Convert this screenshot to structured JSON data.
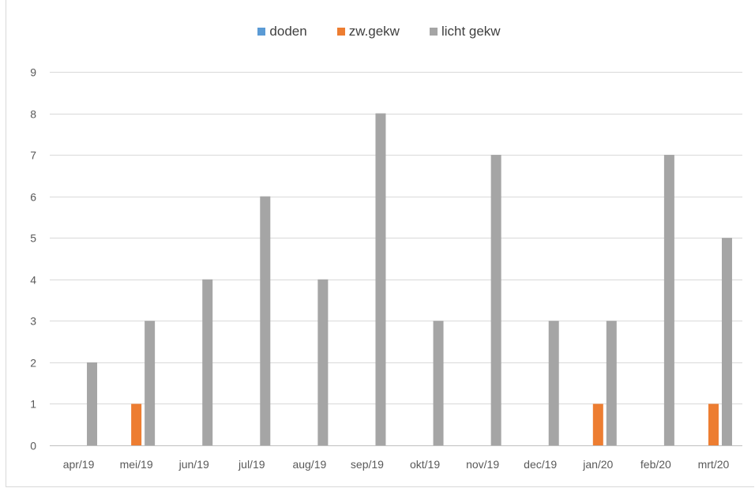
{
  "chart_data": {
    "type": "bar",
    "categories": [
      "apr/19",
      "mei/19",
      "jun/19",
      "jul/19",
      "aug/19",
      "sep/19",
      "okt/19",
      "nov/19",
      "dec/19",
      "jan/20",
      "feb/20",
      "mrt/20"
    ],
    "series": [
      {
        "name": "doden",
        "color": "#5b9bd5",
        "values": [
          0,
          0,
          0,
          0,
          0,
          0,
          0,
          0,
          0,
          0,
          0,
          0
        ]
      },
      {
        "name": "zw.gekw",
        "color": "#ed7d31",
        "values": [
          0,
          1,
          0,
          0,
          0,
          0,
          0,
          0,
          0,
          1,
          0,
          1
        ]
      },
      {
        "name": "licht gekw",
        "color": "#a5a5a5",
        "values": [
          2,
          3,
          4,
          6,
          4,
          8,
          3,
          7,
          3,
          3,
          7,
          5
        ]
      }
    ],
    "ylim": [
      0,
      9
    ],
    "yticks": [
      0,
      1,
      2,
      3,
      4,
      5,
      6,
      7,
      8,
      9
    ],
    "grid": true,
    "legend_position": "top"
  }
}
